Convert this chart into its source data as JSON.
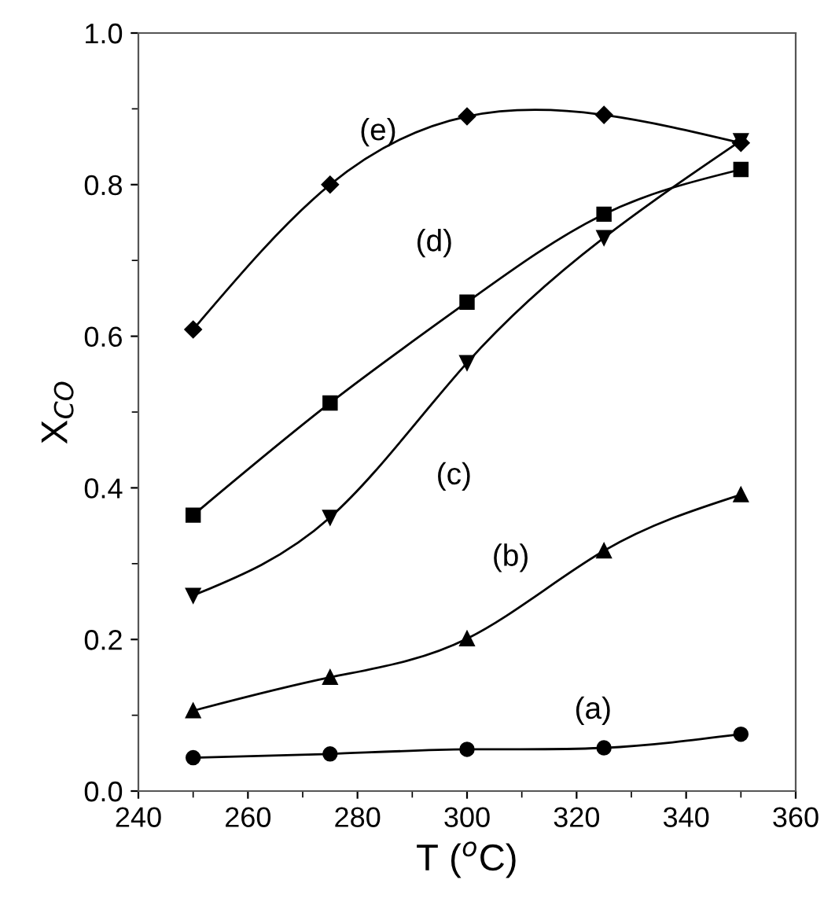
{
  "chart_data": {
    "type": "line",
    "xlabel": "T ($^{o}$C)",
    "ylabel": "X$_{CO}$",
    "x": [
      250,
      275,
      300,
      325,
      350
    ],
    "series": [
      {
        "name": "(a)",
        "color": "#000000",
        "marker": "circle",
        "values": [
          0.044,
          0.049,
          0.055,
          0.057,
          0.075
        ]
      },
      {
        "name": "(b)",
        "color": "#000000",
        "marker": "triangle",
        "values": [
          0.106,
          0.15,
          0.201,
          0.317,
          0.391
        ]
      },
      {
        "name": "(c)",
        "color": "#000000",
        "marker": "triangle_down",
        "values": [
          0.258,
          0.361,
          0.565,
          0.73,
          0.858
        ]
      },
      {
        "name": "(d)",
        "color": "#000000",
        "marker": "square",
        "values": [
          0.364,
          0.512,
          0.645,
          0.761,
          0.82
        ]
      },
      {
        "name": "(e)",
        "color": "#000000",
        "marker": "diamond",
        "values": [
          0.609,
          0.8,
          0.89,
          0.892,
          0.855
        ]
      }
    ],
    "xlim": [
      240,
      360
    ],
    "xticks": [
      240,
      260,
      280,
      300,
      320,
      340,
      360
    ],
    "ylim": [
      0,
      1
    ],
    "yticks": [
      {
        "value": 0,
        "label": "0.0"
      },
      {
        "value": 0.2,
        "label": "0.2"
      },
      {
        "value": 0.4,
        "label": "0.4"
      },
      {
        "value": 0.6,
        "label": "0.6"
      },
      {
        "value": 0.8,
        "label": "0.8"
      },
      {
        "value": 1,
        "label": "1.0"
      }
    ],
    "grid": false,
    "legend": false,
    "line_style": "solid"
  }
}
